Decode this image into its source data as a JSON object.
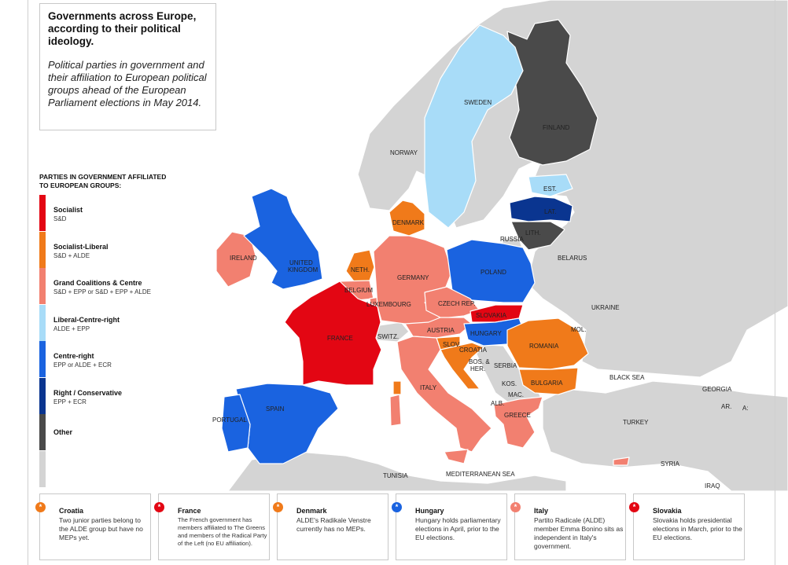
{
  "title": "Governments across Europe, according to their political ideology.",
  "subtitle": "Political parties in government and their affiliation to European political groups ahead of the European Parliament elections in May 2014.",
  "legend": {
    "heading": "PARTIES IN GOVERNMENT AFFILIATED TO EUROPEAN GROUPS:",
    "items": [
      {
        "name": "Socialist",
        "desc": "S&D",
        "color": "#e30613"
      },
      {
        "name": "Socialist-Liberal",
        "desc": "S&D + ALDE",
        "color": "#f07a1a"
      },
      {
        "name": "Grand Coalitions & Centre",
        "desc": "S&D + EPP or S&D + EPP + ALDE",
        "color": "#f28070"
      },
      {
        "name": "Liberal-Centre-right",
        "desc": "ALDE + EPP",
        "color": "#a8dcf8"
      },
      {
        "name": "Centre-right",
        "desc": "EPP or ALDE + ECR",
        "color": "#1a63e0"
      },
      {
        "name": "Right / Conservative",
        "desc": "EPP + ECR",
        "color": "#0a3590"
      },
      {
        "name": "Other",
        "desc": "",
        "color": "#4a4a4a"
      },
      {
        "name": "",
        "desc": "",
        "color": "#d4d4d4"
      }
    ]
  },
  "colors": {
    "sea": "#ffffff",
    "nonEU": "#d4d4d4",
    "border": "#ffffff"
  },
  "countries": {
    "sweden": "SWEDEN",
    "finland": "FINLAND",
    "norway": "NORWAY",
    "est": "EST.",
    "lat": "LAT.",
    "lith": "LITH.",
    "russia": "RUSSIA",
    "denmark": "DENMARK",
    "ireland": "IRELAND",
    "uk": "UNITED KINGDOM",
    "neth": "NETH.",
    "belgium": "BELGIUM",
    "luxembourg": "LUXEMBOURG",
    "germany": "GERMANY",
    "poland": "POLAND",
    "belarus": "BELARUS",
    "czech": "CZECH REP.",
    "slovakia": "SLOVAKIA",
    "ukraine": "UKRAINE",
    "france": "FRANCE",
    "switz": "SWITZ.",
    "austria": "AUSTRIA",
    "hungary": "HUNGARY",
    "mol": "MOL.",
    "slov": "SLOV.",
    "croatia": "CROATIA",
    "romania": "ROMANIA",
    "bos": "BOS. & HER.",
    "serbia": "SERBIA",
    "blacksea": "BLACK SEA",
    "kos": "KOS.",
    "bulgaria": "BULGARIA",
    "mac": "MAC.",
    "alb": "ALB.",
    "georgia": "GEORGIA",
    "ar": "AR.",
    "az": "A:",
    "italy": "ITALY",
    "greece": "GREECE",
    "spain": "SPAIN",
    "portugal": "PORTUGAL",
    "turkey": "TURKEY",
    "syria": "SYRIA",
    "iraq": "IRAQ",
    "tunisia": "TUNISIA",
    "med": "MEDITERRANEAN SEA"
  },
  "notes": [
    {
      "title": "Croatia",
      "body": "Two junior parties belong to the ALDE group but have no MEPs yet.",
      "color": "#f07a1a",
      "icon": "asterisk-icon"
    },
    {
      "title": "France",
      "body": "The French government has members affiliated to The Greens and members of the Radical Party of the Left (no EU affiliation).",
      "color": "#e30613",
      "icon": "asterisk-icon"
    },
    {
      "title": "Denmark",
      "body": "ALDE's Radikale Venstre currently has no MEPs.",
      "color": "#f07a1a",
      "icon": "asterisk-icon"
    },
    {
      "title": "Hungary",
      "body": "Hungary holds parliamentary elections in April, prior to the EU elections.",
      "color": "#1a63e0",
      "icon": "asterisk-icon"
    },
    {
      "title": "Italy",
      "body": "Partito Radicale (ALDE) member Emma Bonino sits as independent in Italy's government.",
      "color": "#f28070",
      "icon": "asterisk-icon"
    },
    {
      "title": "Slovakia",
      "body": "Slovakia holds presidential elections in March, prior to the EU elections.",
      "color": "#e30613",
      "icon": "asterisk-icon"
    }
  ],
  "note_glyph": "*"
}
